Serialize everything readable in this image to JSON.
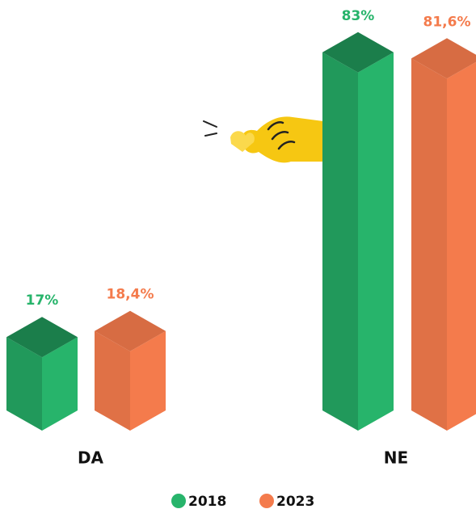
{
  "chart_data": {
    "type": "bar3d",
    "categories": [
      "DA",
      "NE"
    ],
    "series": [
      {
        "name": "2018",
        "color": "#27b46b",
        "values": [
          17,
          83
        ],
        "value_labels": [
          "17%",
          "83%"
        ]
      },
      {
        "name": "2023",
        "color": "#f47b4c",
        "values": [
          18.4,
          81.6
        ],
        "value_labels": [
          "18,4%",
          "81,6%"
        ]
      }
    ]
  }
}
